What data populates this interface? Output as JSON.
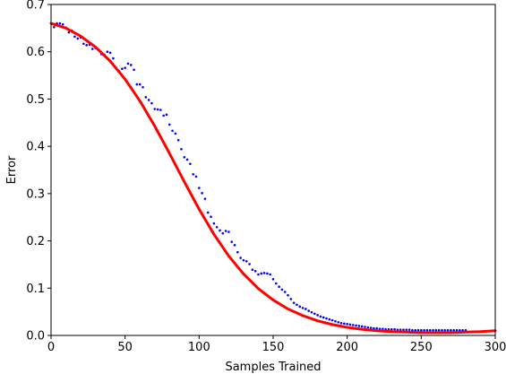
{
  "chart_data": {
    "type": "scatter",
    "title": "",
    "xlabel": "Samples Trained",
    "ylabel": "Error",
    "xlim": [
      0,
      300
    ],
    "ylim": [
      0,
      0.7
    ],
    "xticks": [
      0,
      50,
      100,
      150,
      200,
      250,
      300
    ],
    "xtick_labels": [
      "0",
      "50",
      "100",
      "150",
      "200",
      "250",
      "300"
    ],
    "yticks": [
      0.0,
      0.1,
      0.2,
      0.3,
      0.4,
      0.5,
      0.6,
      0.7
    ],
    "ytick_labels": [
      "0.0",
      "0.1",
      "0.2",
      "0.3",
      "0.4",
      "0.5",
      "0.6",
      "0.7"
    ],
    "grid": false,
    "series": [
      {
        "type": "scatter",
        "color": "#0000ff",
        "marker": "dot",
        "x": [
          2,
          4,
          6,
          8,
          10,
          12,
          14,
          16,
          18,
          20,
          22,
          24,
          26,
          28,
          30,
          32,
          34,
          36,
          38,
          40,
          42,
          44,
          46,
          48,
          50,
          52,
          54,
          56,
          58,
          60,
          62,
          64,
          66,
          68,
          70,
          72,
          74,
          76,
          78,
          80,
          82,
          84,
          86,
          88,
          90,
          92,
          94,
          96,
          98,
          100,
          102,
          104,
          106,
          108,
          110,
          112,
          114,
          116,
          118,
          120,
          122,
          124,
          126,
          128,
          130,
          132,
          134,
          136,
          138,
          140,
          142,
          144,
          146,
          148,
          150,
          152,
          154,
          156,
          158,
          160,
          162,
          164,
          166,
          168,
          170,
          172,
          174,
          176,
          178,
          180,
          182,
          184,
          186,
          188,
          190,
          192,
          194,
          196,
          198,
          200,
          202,
          204,
          206,
          208,
          210,
          212,
          214,
          216,
          218,
          220,
          222,
          224,
          226,
          228,
          230,
          232,
          234,
          236,
          238,
          240,
          242,
          244,
          246,
          248,
          250,
          252,
          254,
          256,
          258,
          260,
          262,
          264,
          266,
          268,
          270,
          272,
          274,
          276,
          278,
          280
        ],
        "y": [
          0.652,
          0.66,
          0.66,
          0.658,
          0.651,
          0.641,
          0.645,
          0.632,
          0.628,
          0.63,
          0.617,
          0.614,
          0.615,
          0.606,
          0.608,
          0.604,
          0.595,
          0.594,
          0.6,
          0.598,
          0.586,
          0.566,
          0.559,
          0.564,
          0.566,
          0.575,
          0.572,
          0.562,
          0.531,
          0.531,
          0.525,
          0.504,
          0.498,
          0.491,
          0.479,
          0.478,
          0.477,
          0.465,
          0.467,
          0.446,
          0.433,
          0.427,
          0.413,
          0.394,
          0.377,
          0.372,
          0.363,
          0.341,
          0.336,
          0.312,
          0.301,
          0.289,
          0.26,
          0.251,
          0.237,
          0.229,
          0.222,
          0.216,
          0.221,
          0.219,
          0.198,
          0.191,
          0.176,
          0.164,
          0.159,
          0.157,
          0.151,
          0.139,
          0.136,
          0.129,
          0.131,
          0.132,
          0.131,
          0.129,
          0.119,
          0.11,
          0.103,
          0.097,
          0.092,
          0.085,
          0.077,
          0.069,
          0.065,
          0.061,
          0.058,
          0.056,
          0.052,
          0.049,
          0.046,
          0.043,
          0.04,
          0.038,
          0.036,
          0.034,
          0.032,
          0.03,
          0.028,
          0.026,
          0.025,
          0.024,
          0.023,
          0.022,
          0.021,
          0.02,
          0.019,
          0.018,
          0.017,
          0.016,
          0.015,
          0.015,
          0.014,
          0.014,
          0.013,
          0.013,
          0.013,
          0.013,
          0.012,
          0.012,
          0.012,
          0.012,
          0.012,
          0.011,
          0.011,
          0.011,
          0.011,
          0.011,
          0.011,
          0.011,
          0.011,
          0.011,
          0.011,
          0.011,
          0.011,
          0.011,
          0.011,
          0.011,
          0.011,
          0.011,
          0.011,
          0.011
        ]
      },
      {
        "type": "line",
        "color": "#ff0000",
        "x": [
          0,
          10,
          20,
          30,
          40,
          50,
          60,
          70,
          80,
          90,
          100,
          110,
          120,
          130,
          140,
          150,
          160,
          170,
          180,
          190,
          200,
          210,
          220,
          230,
          240,
          250,
          260,
          270,
          280,
          290,
          300
        ],
        "y": [
          0.66,
          0.65,
          0.633,
          0.61,
          0.58,
          0.542,
          0.496,
          0.443,
          0.385,
          0.325,
          0.267,
          0.214,
          0.168,
          0.13,
          0.099,
          0.075,
          0.056,
          0.042,
          0.031,
          0.023,
          0.017,
          0.013,
          0.01,
          0.008,
          0.007,
          0.006,
          0.006,
          0.006,
          0.007,
          0.008,
          0.01
        ]
      }
    ]
  }
}
